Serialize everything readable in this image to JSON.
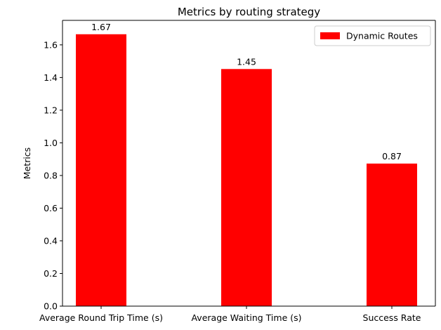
{
  "chart_data": {
    "type": "bar",
    "title": "Metrics by routing strategy",
    "xlabel": "",
    "ylabel": "Metrics",
    "categories": [
      "Average Round Trip Time (s)",
      "Average Waiting Time (s)",
      "Success Rate"
    ],
    "series": [
      {
        "name": "Dynamic Routes",
        "values": [
          1.665,
          1.452,
          0.873
        ],
        "data_labels": [
          "1.67",
          "1.45",
          "0.87"
        ],
        "color": "#ff0000"
      }
    ],
    "ylim": [
      0,
      1.75
    ],
    "yticks": [
      0.0,
      0.2,
      0.4,
      0.6,
      0.8,
      1.0,
      1.2,
      1.4,
      1.6
    ],
    "ytick_labels": [
      "0.0",
      "0.2",
      "0.4",
      "0.6",
      "0.8",
      "1.0",
      "1.2",
      "1.4",
      "1.6"
    ],
    "grid": false,
    "legend": "top-right"
  }
}
